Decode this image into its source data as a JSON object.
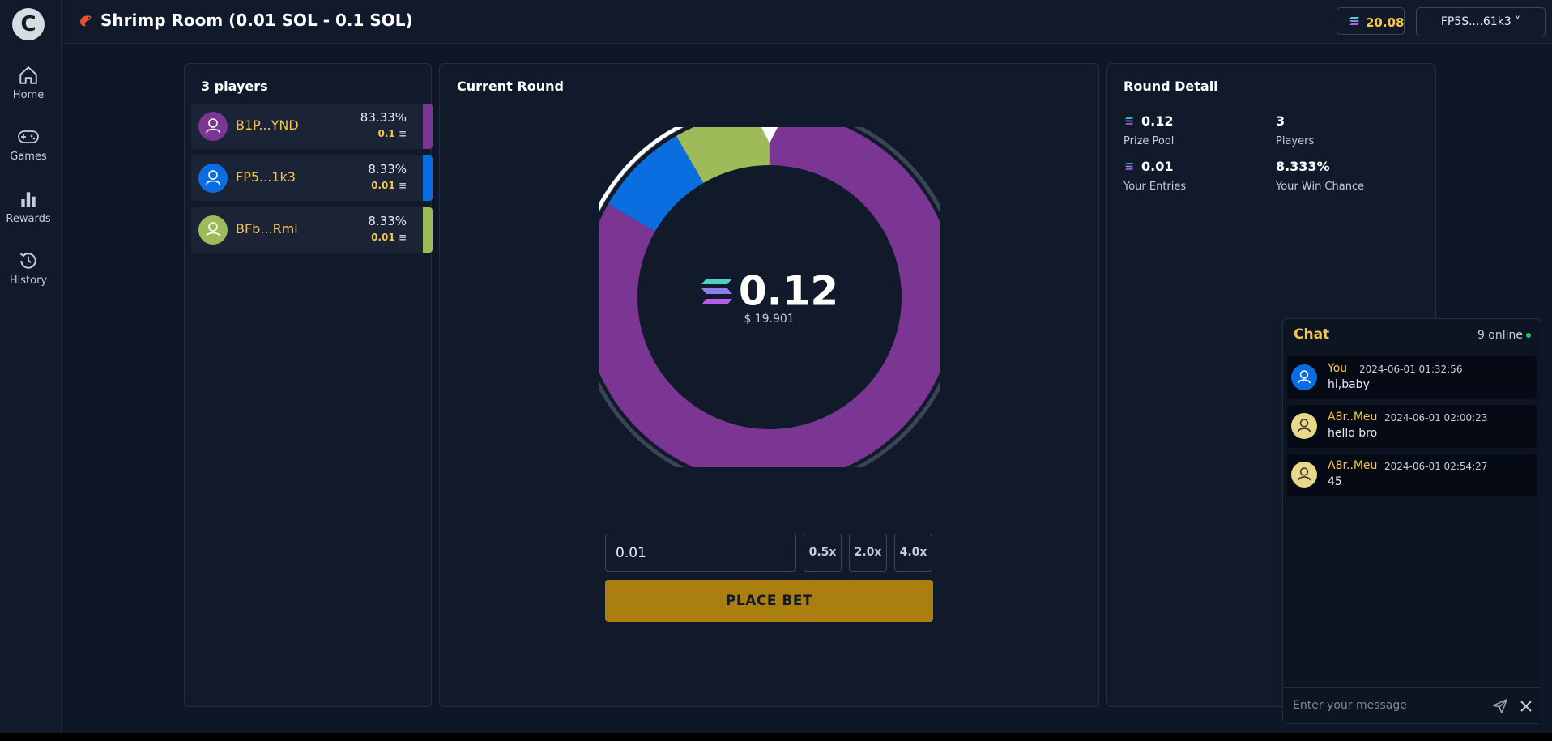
{
  "sidebar": {
    "logo": "C",
    "items": [
      {
        "label": "Home",
        "icon": "home-icon"
      },
      {
        "label": "Games",
        "icon": "gamepad-icon"
      },
      {
        "label": "Rewards",
        "icon": "bar-chart-icon"
      },
      {
        "label": "History",
        "icon": "history-icon"
      }
    ]
  },
  "header": {
    "room_title": "Shrimp Room (0.01 SOL - 0.1 SOL)",
    "balance": "20.08",
    "wallet": "FP5S....61k3 ˅"
  },
  "players_panel": {
    "title": "3 players",
    "players": [
      {
        "name": "B1P...YND",
        "pct": "83.33%",
        "amount": "0.1",
        "color": "#7b3592",
        "share": 0.8333
      },
      {
        "name": "FP5...1k3",
        "pct": "8.33%",
        "amount": "0.01",
        "color": "#0a6ee0",
        "share": 0.0833
      },
      {
        "name": "BFb...Rmi",
        "pct": "8.33%",
        "amount": "0.01",
        "color": "#9dbb59",
        "share": 0.0833
      }
    ]
  },
  "round": {
    "title": "Current Round",
    "total": "0.12",
    "usd": "$ 19.901",
    "bet_value": "0.01",
    "multipliers": [
      "0.5x",
      "2.0x",
      "4.0x"
    ],
    "place_bet_label": "PLACE BET"
  },
  "round_detail": {
    "title": "Round Detail",
    "prize_pool": "0.12",
    "prize_pool_label": "Prize Pool",
    "players": "3",
    "players_label": "Players",
    "your_entries": "0.01",
    "your_entries_label": "Your Entries",
    "win_chance": "8.333%",
    "win_chance_label": "Your Win Chance"
  },
  "chat": {
    "title": "Chat",
    "online": "9 online",
    "messages": [
      {
        "user": "You",
        "time": "2024-06-01 01:32:56",
        "text": "hi,baby",
        "avatar_color": "#0a6ee0"
      },
      {
        "user": "A8r..Meu",
        "time": "2024-06-01 02:00:23",
        "text": "hello bro",
        "avatar_color": "#e8d88a"
      },
      {
        "user": "A8r..Meu",
        "time": "2024-06-01 02:54:27",
        "text": "45",
        "avatar_color": "#e8d88a"
      }
    ],
    "placeholder": "Enter your message"
  }
}
